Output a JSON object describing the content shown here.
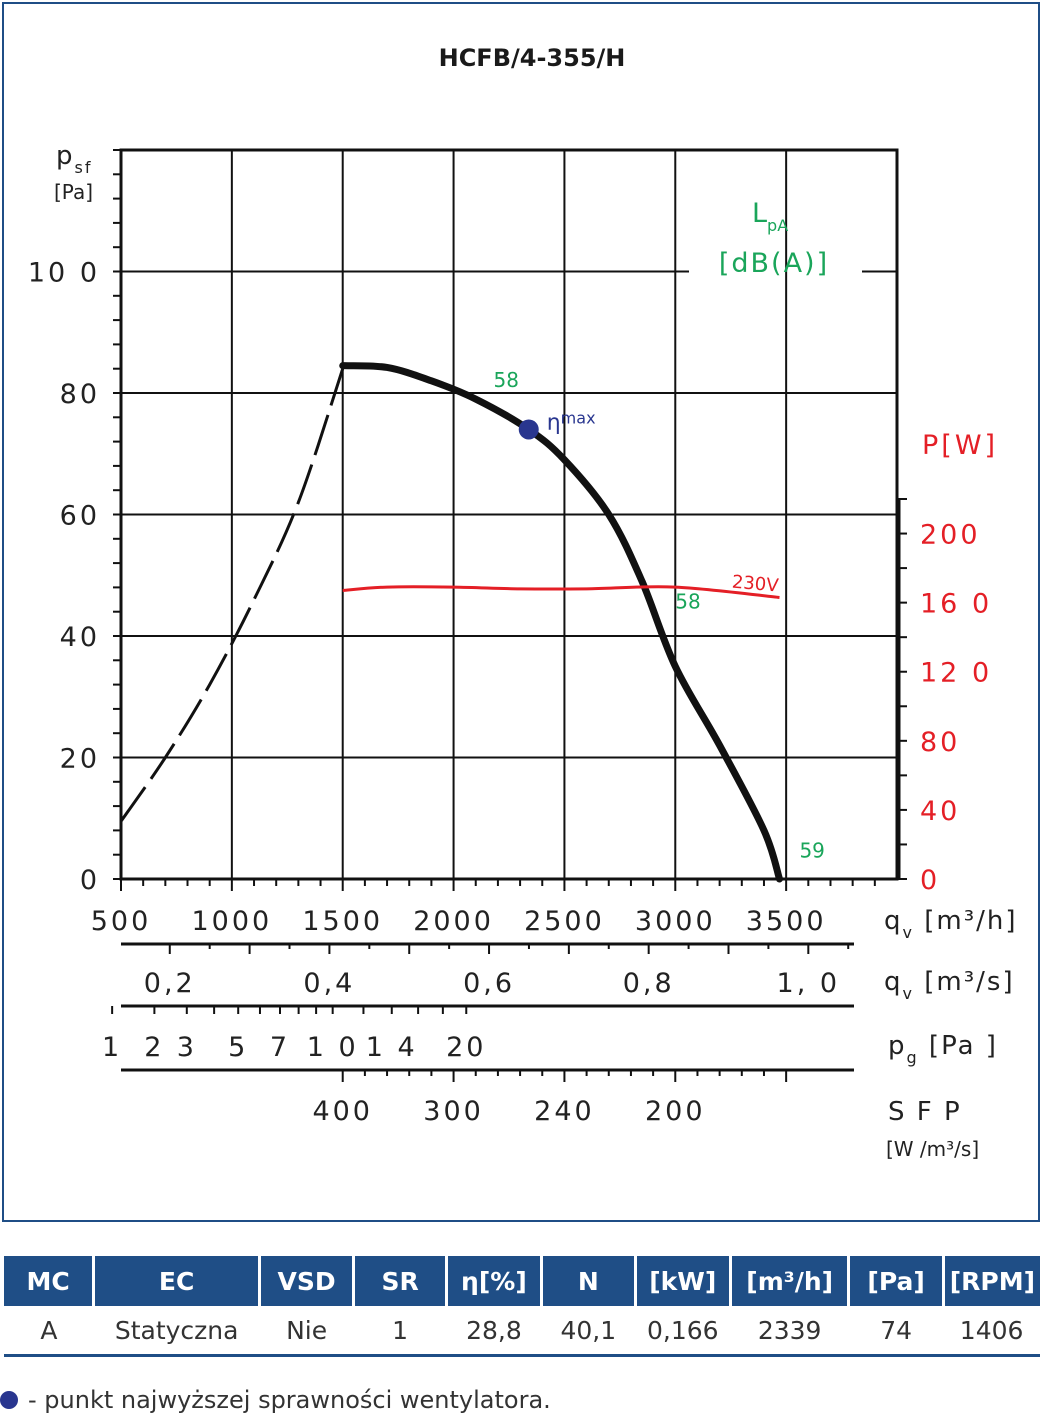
{
  "chart_data": {
    "type": "line",
    "title": "HCFB/4-355/H",
    "y_label_main": "p",
    "y_label_sub": "sf",
    "y_unit": "[Pa]",
    "y_ticks": [
      "0",
      "20",
      "40",
      "60",
      "80",
      "10 0"
    ],
    "ylim": [
      0,
      120
    ],
    "y2_label": "P[W]",
    "y2_ticks": [
      "0",
      "40",
      "80",
      "12 0",
      "16 0",
      "200"
    ],
    "y2lim": [
      0,
      220
    ],
    "x_axes": [
      {
        "label": "q",
        "sub": "v",
        "unit": "[m³/h]",
        "ticks": [
          {
            "v": 500,
            "t": "500"
          },
          {
            "v": 1000,
            "t": "1000"
          },
          {
            "v": 1500,
            "t": "1500"
          },
          {
            "v": 2000,
            "t": "2000"
          },
          {
            "v": 2500,
            "t": "2500"
          },
          {
            "v": 3000,
            "t": "3000"
          },
          {
            "v": 3500,
            "t": "3500"
          }
        ]
      },
      {
        "label": "q",
        "sub": "v",
        "unit": "[m³/s]",
        "ticks": [
          {
            "v": 0.2,
            "t": "0,2"
          },
          {
            "v": 0.4,
            "t": "0,4"
          },
          {
            "v": 0.6,
            "t": "0,6"
          },
          {
            "v": 0.8,
            "t": "0,8"
          },
          {
            "v": 1.0,
            "t": "1, 0"
          }
        ]
      },
      {
        "label": "p",
        "sub": "g",
        "unit": "[Pa ]",
        "ticks": [
          {
            "v": 1,
            "t": "1"
          },
          {
            "v": 2,
            "t": "2"
          },
          {
            "v": 3,
            "t": "3"
          },
          {
            "v": 5,
            "t": "5"
          },
          {
            "v": 7,
            "t": "7"
          },
          {
            "v": 10,
            "t": "1 0"
          },
          {
            "v": 14,
            "t": "1 4"
          },
          {
            "v": 20,
            "t": "20"
          }
        ]
      },
      {
        "label": "S F P",
        "unit": "[W /m³/s]",
        "ticks": [
          {
            "v": 1500,
            "t": "400"
          },
          {
            "v": 2000,
            "t": "300"
          },
          {
            "v": 2500,
            "t": "240"
          },
          {
            "v": 3000,
            "t": "200"
          }
        ]
      }
    ],
    "xlim": [
      500,
      4000
    ],
    "lpa_label": "L",
    "lpa_sub": "pA",
    "lpa_unit": "[dB(A)]",
    "series": [
      {
        "kind": "pressure-unstable",
        "dashed": true,
        "points": [
          [
            500,
            9.5
          ],
          [
            700,
            20
          ],
          [
            900,
            32
          ],
          [
            1100,
            46
          ],
          [
            1300,
            62
          ],
          [
            1500,
            84
          ]
        ]
      },
      {
        "kind": "pressure",
        "dashed": false,
        "points": [
          [
            1500,
            84.5
          ],
          [
            1700,
            84.2
          ],
          [
            1900,
            82
          ],
          [
            2100,
            79
          ],
          [
            2339,
            74
          ],
          [
            2500,
            69
          ],
          [
            2700,
            60
          ],
          [
            2850,
            49
          ],
          [
            3000,
            35
          ],
          [
            3200,
            22
          ],
          [
            3400,
            8
          ],
          [
            3470,
            0
          ]
        ]
      },
      {
        "name": "230V",
        "kind": "power",
        "axis": "right",
        "points": [
          [
            1500,
            167
          ],
          [
            1700,
            169
          ],
          [
            2000,
            169
          ],
          [
            2300,
            168
          ],
          [
            2600,
            168
          ],
          [
            3000,
            169
          ],
          [
            3470,
            163
          ]
        ]
      }
    ],
    "noise_labels": [
      {
        "text": "58",
        "x": 2180,
        "y": 81
      },
      {
        "text": "58",
        "x": 3000,
        "y": 44.5
      },
      {
        "text": "59",
        "x": 3560,
        "y": 3.5
      }
    ],
    "eta_max": {
      "x": 2339,
      "y": 74,
      "label": "η",
      "sub": "max"
    },
    "colors": {
      "power": "#e41f26",
      "lpa": "#1aa55a",
      "eta": "#29368f",
      "pressure": "#111111"
    }
  },
  "table": {
    "headers": [
      "MC",
      "EC",
      "VSD",
      "SR",
      "η[%]",
      "N",
      "[kW]",
      "[m³/h]",
      "[Pa]",
      "[RPM]"
    ],
    "row": [
      "A",
      "Statyczna",
      "Nie",
      "1",
      "28,8",
      "40,1",
      "0,166",
      "2339",
      "74",
      "1406"
    ]
  },
  "legend": {
    "text": "- punkt najwyższej sprawności wentylatora."
  }
}
